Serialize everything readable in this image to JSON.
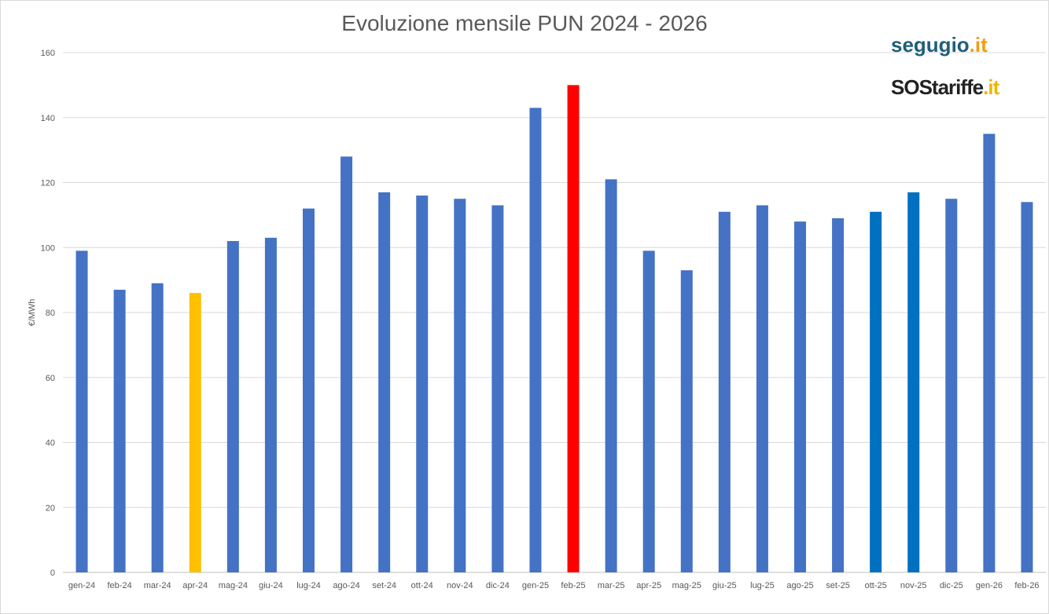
{
  "chart_data": {
    "type": "bar",
    "title": "Evoluzione mensile PUN 2024 - 2026",
    "xlabel": "",
    "ylabel": "€/MWh",
    "ylim": [
      0,
      160
    ],
    "yticks": [
      0,
      20,
      40,
      60,
      80,
      100,
      120,
      140,
      160
    ],
    "grid": true,
    "categories": [
      "gen-24",
      "feb-24",
      "mar-24",
      "apr-24",
      "mag-24",
      "giu-24",
      "lug-24",
      "ago-24",
      "set-24",
      "ott-24",
      "nov-24",
      "dic-24",
      "gen-25",
      "feb-25",
      "mar-25",
      "apr-25",
      "mag-25",
      "giu-25",
      "lug-25",
      "ago-25",
      "set-25",
      "ott-25",
      "nov-25",
      "dic-25",
      "gen-26",
      "feb-26"
    ],
    "values": [
      99,
      87,
      89,
      86,
      102,
      103,
      112,
      128,
      117,
      116,
      115,
      113,
      143,
      150,
      121,
      99,
      93,
      111,
      113,
      108,
      109,
      111,
      117,
      115,
      135,
      114
    ],
    "default_color": "#4472C4",
    "highlight_colors": {
      "apr-24": "#FFC000",
      "feb-25": "#FF0000",
      "ott-25": "#0070C0",
      "nov-25": "#0070C0"
    }
  },
  "logos": {
    "segugio": {
      "name": "segugio",
      "suffix": ".it"
    },
    "sostariffe": {
      "name": "SOStariffe",
      "suffix": ".it"
    }
  }
}
